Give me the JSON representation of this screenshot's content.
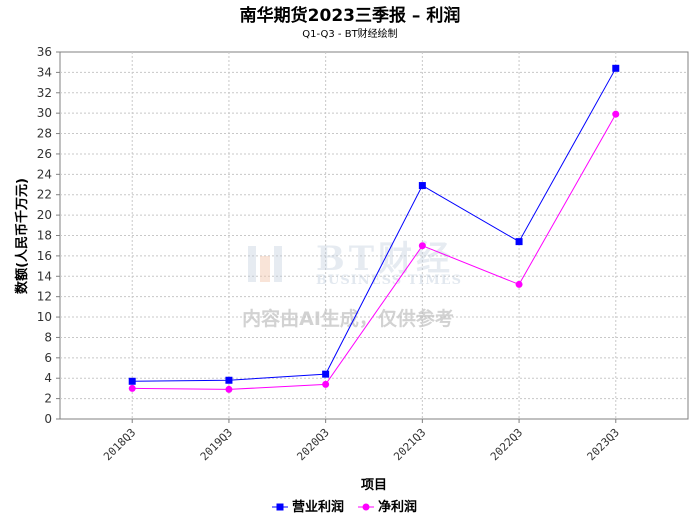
{
  "chart_data": {
    "type": "line",
    "title": "南华期货2023三季报 – 利润",
    "subtitle": "Q1-Q3 - BT财经绘制",
    "xlabel": "项目",
    "ylabel": "数额(人民币千万元)",
    "ylim": [
      0,
      36
    ],
    "ytick_step": 2,
    "grid": true,
    "legend_position": "bottom",
    "categories": [
      "2018Q3",
      "2019Q3",
      "2020Q3",
      "2021Q3",
      "2022Q3",
      "2023Q3"
    ],
    "series": [
      {
        "name": "营业利润",
        "color": "#0000ff",
        "marker": "square",
        "values": [
          3.7,
          3.8,
          4.4,
          22.9,
          17.4,
          34.4
        ]
      },
      {
        "name": "净利润",
        "color": "#ff00ff",
        "marker": "circle",
        "values": [
          3.0,
          2.9,
          3.4,
          17.0,
          13.2,
          29.9
        ]
      }
    ]
  },
  "watermark": {
    "brand": "BT财经",
    "brand_en": "BUSINESS TIMES",
    "note": "内容由AI生成，仅供参考"
  }
}
